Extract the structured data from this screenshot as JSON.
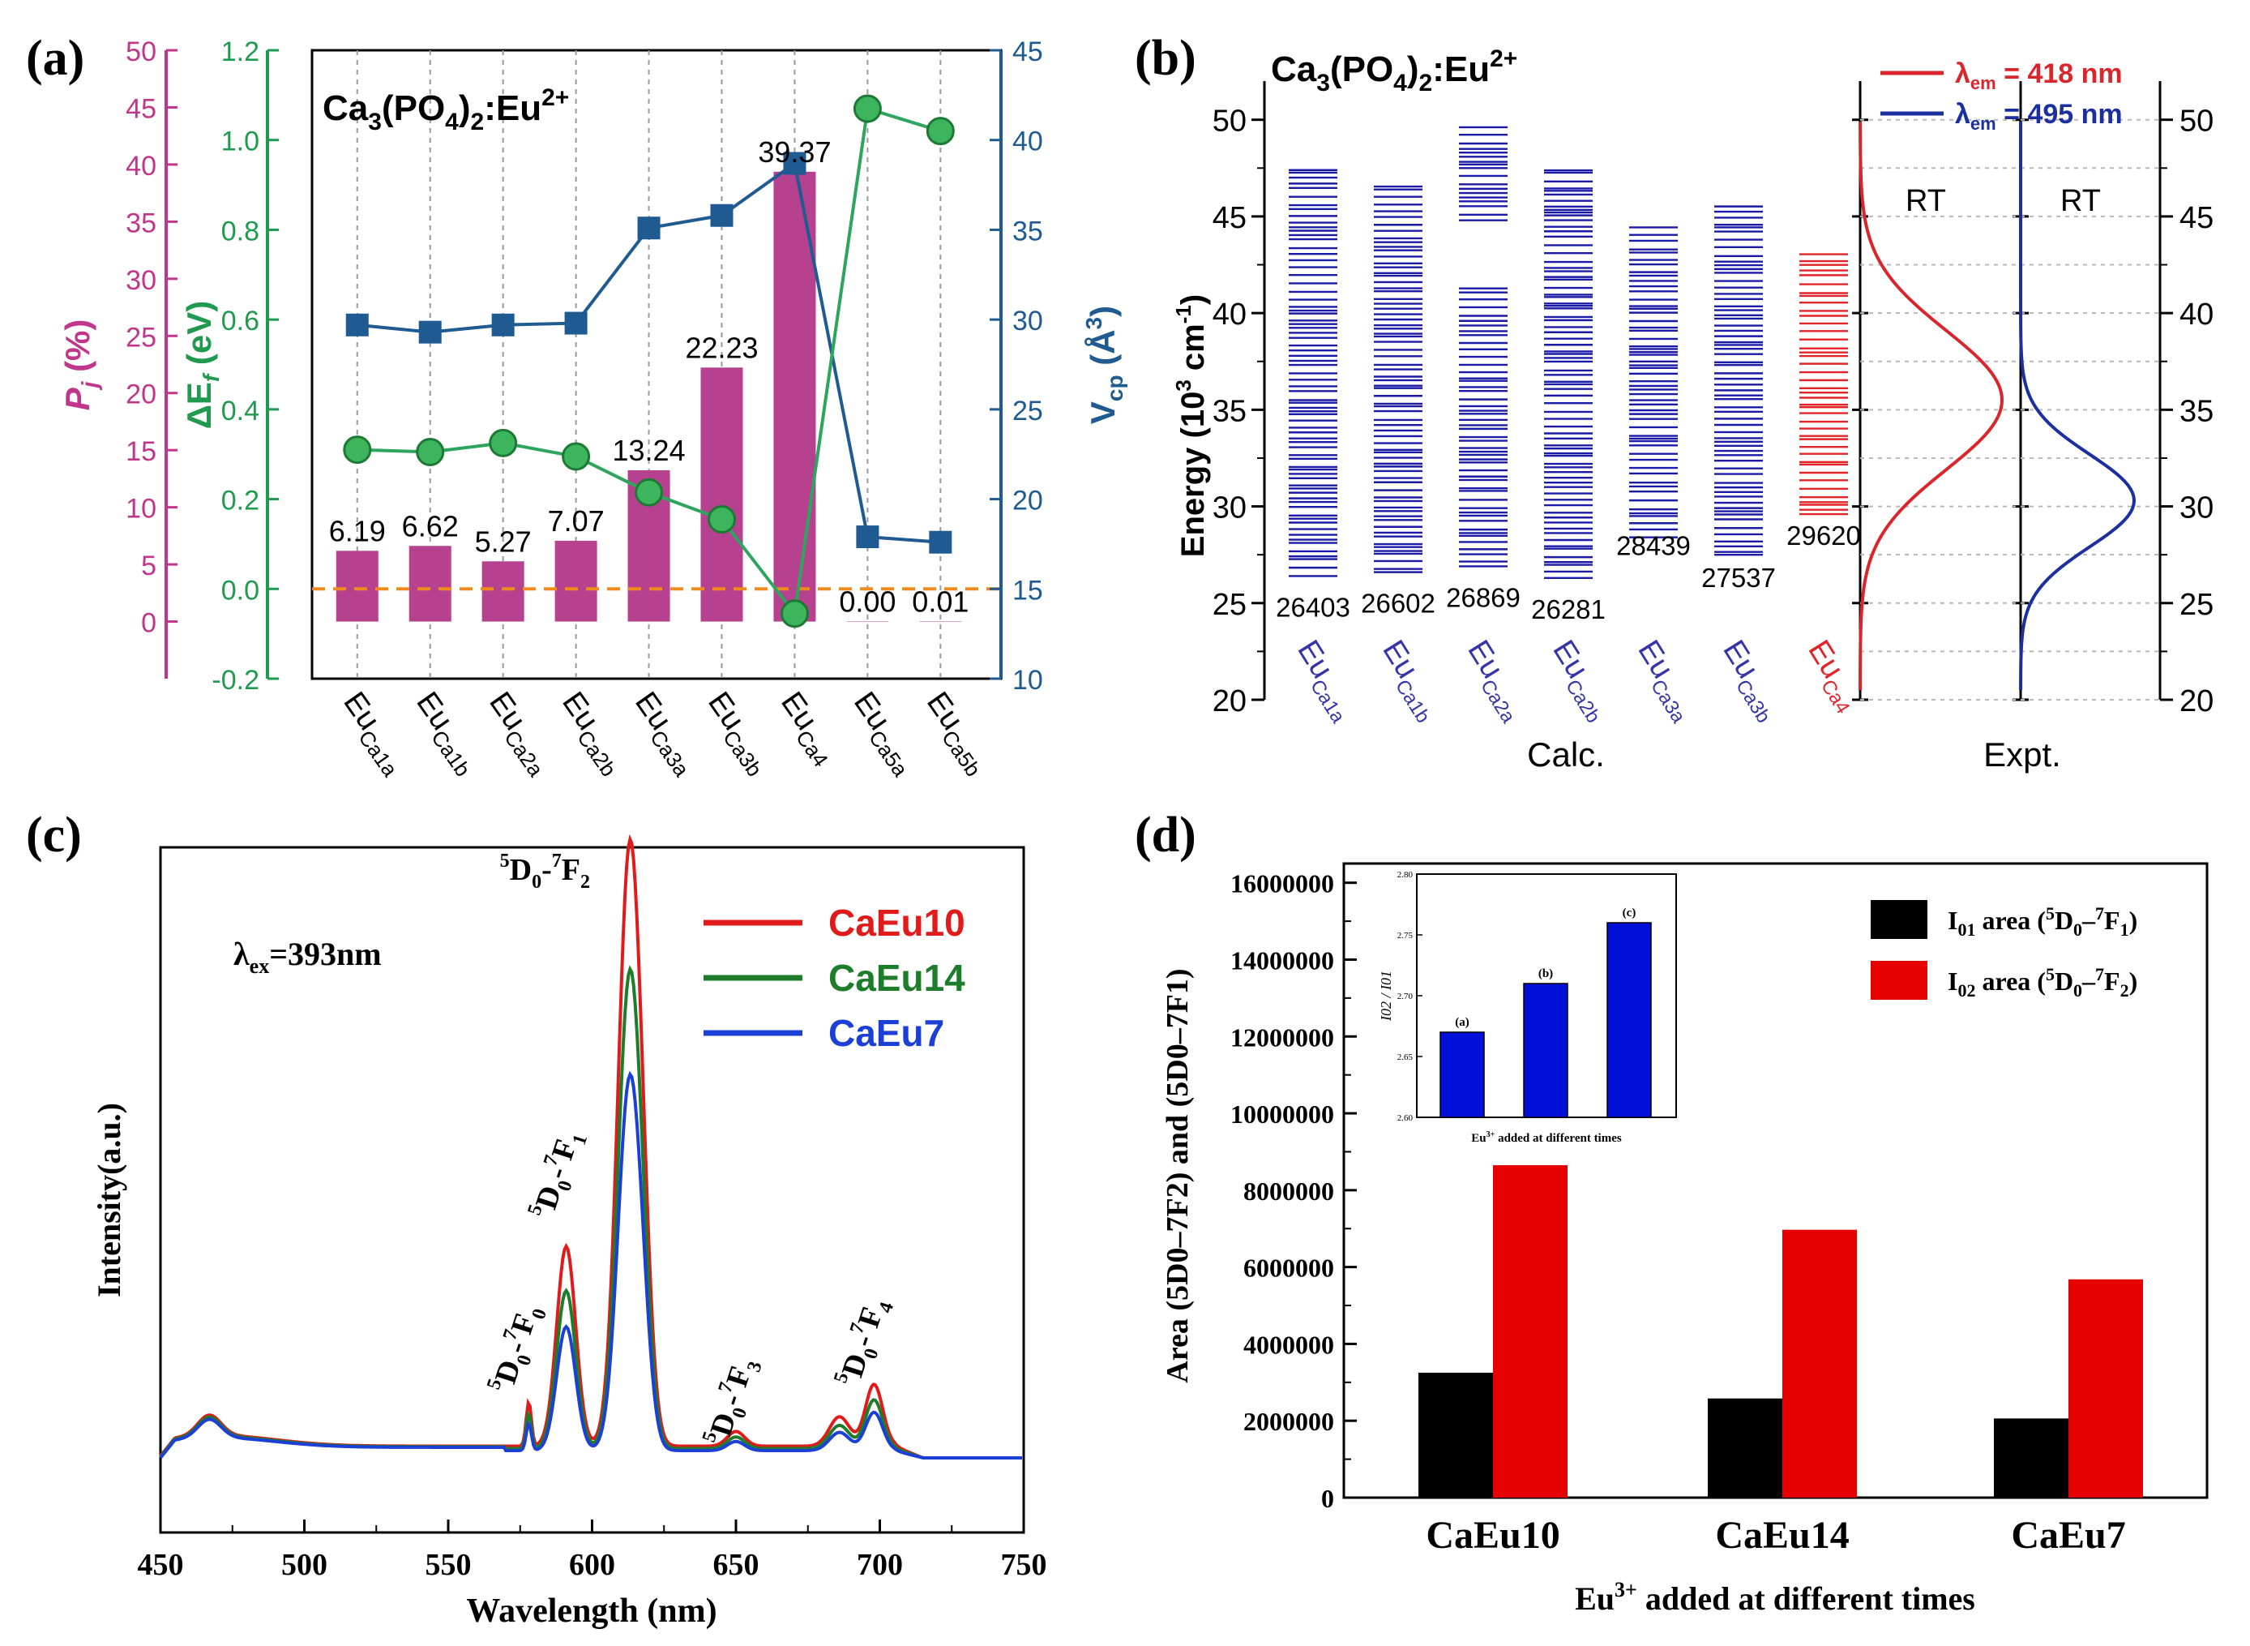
{
  "chart_data": [
    {
      "panel": "(a)",
      "type": "bar",
      "title_base": "Ca",
      "title_sub1": "3",
      "title_mid": "(PO",
      "title_sub2": "4",
      "title_mid2": ")",
      "title_sub3": "2",
      "title_end": ":Eu",
      "title_sup": "2+",
      "categories": [
        "Ca1a",
        "Ca1b",
        "Ca2a",
        "Ca2b",
        "Ca3a",
        "Ca3b",
        "Ca4",
        "Ca5a",
        "Ca5b"
      ],
      "category_prefix": "Eu",
      "pj_label": "P",
      "pj_sub": "j",
      "pj_unit": " (%)",
      "pj_values": [
        6.19,
        6.62,
        5.27,
        7.07,
        13.24,
        22.23,
        39.37,
        0.0,
        0.01
      ],
      "pj_labels": [
        "6.19",
        "6.62",
        "5.27",
        "7.07",
        "13.24",
        "22.23",
        "39.37",
        "0.00",
        "0.01"
      ],
      "pj_ticks": [
        0,
        5,
        10,
        15,
        20,
        25,
        30,
        35,
        40,
        45,
        50
      ],
      "pj_ylim": [
        -5,
        50
      ],
      "de_label": "ΔE",
      "de_sub": "f",
      "de_unit": " (eV)",
      "de_values": [
        0.31,
        0.305,
        0.325,
        0.295,
        0.215,
        0.155,
        -0.055,
        1.07,
        1.02
      ],
      "de_ticks": [
        "-0.2",
        "0.0",
        "0.2",
        "0.4",
        "0.6",
        "0.8",
        "1.0",
        "1.2"
      ],
      "de_ylim": [
        -0.2,
        1.2
      ],
      "vcp_label": "V",
      "vcp_sub": "cp",
      "vcp_unit": " (Å",
      "vcp_unit_sup": "3",
      "vcp_unit_end": ")",
      "vcp_values": [
        29.7,
        29.3,
        29.7,
        29.8,
        35.1,
        35.8,
        38.7,
        17.9,
        17.6
      ],
      "vcp_ticks": [
        10,
        15,
        20,
        25,
        30,
        35,
        40,
        45
      ],
      "vcp_ylim": [
        10,
        45
      ],
      "colors": {
        "bar": "#b5418f",
        "de": "#2ea55e",
        "vcp": "#1f5a91",
        "zero_line": "#f08a1c",
        "pj_axis": "#c0368a",
        "de_axis": "#1f9a4e",
        "vcp_axis": "#1f5a91"
      }
    },
    {
      "panel": "(b)",
      "type": "other",
      "title_base": "Ca",
      "title_sub1": "3",
      "title_mid": "(PO",
      "title_sub2": "4",
      "title_mid2": ")",
      "title_sub3": "2",
      "title_end": ":Eu",
      "title_sup": "2+",
      "ylabel": "Energy (10",
      "ylabel_sup": "3",
      "ylabel_end": " cm",
      "ylabel_sup2": "-1",
      "ylabel_close": ")",
      "yticks": [
        20,
        25,
        30,
        35,
        40,
        45,
        50
      ],
      "ylim": [
        20,
        52
      ],
      "columns": [
        {
          "site": "Ca1a",
          "onset": "26403",
          "low": 26.4,
          "high": 47.8
        },
        {
          "site": "Ca1b",
          "onset": "26602",
          "low": 26.6,
          "high": 46.8
        },
        {
          "site": "Ca2a",
          "onset": "26869",
          "low": 26.9,
          "high": 49.8
        },
        {
          "site": "Ca2b",
          "onset": "26281",
          "low": 26.3,
          "high": 47.5
        },
        {
          "site": "Ca3a",
          "onset": "28439",
          "low": 28.4,
          "high": 44.5
        },
        {
          "site": "Ca3b",
          "onset": "27537",
          "low": 27.5,
          "high": 45.7
        },
        {
          "site": "Ca4",
          "onset": "29620",
          "low": 29.6,
          "high": 43.1
        }
      ],
      "calc_label": "Calc.",
      "expt_label": "Expt.",
      "rt_label": "RT",
      "legend": [
        {
          "prefix": "λ",
          "sub": "em",
          "value": " = 418 nm",
          "color": "#d9262c"
        },
        {
          "prefix": "λ",
          "sub": "em",
          "value": " = 495 nm",
          "color": "#1c2f9e"
        }
      ],
      "emission_peaks_1e3cm": [
        35.5,
        30.3
      ],
      "colors": {
        "calc": "#1a1aa6",
        "ca4": "#e0242a",
        "curve1": "#d9262c",
        "curve2": "#1c2f9e",
        "site_label": "#3535a8"
      }
    },
    {
      "panel": "(c)",
      "type": "line",
      "xlabel": "Wavelength (nm)",
      "ylabel": "Intensity(a.u.)",
      "xticks": [
        450,
        500,
        550,
        600,
        650,
        700,
        750
      ],
      "xlim": [
        450,
        750
      ],
      "excitation": "λ",
      "excitation_sub": "ex",
      "excitation_value": "=393nm",
      "series": [
        {
          "name": "CaEu10",
          "color": "#e01b1b",
          "peak_scale": 1.0
        },
        {
          "name": "CaEu14",
          "color": "#1e7d2a",
          "peak_scale": 0.79
        },
        {
          "name": "CaEu7",
          "color": "#1c3fd6",
          "peak_scale": 0.62
        }
      ],
      "peaks": [
        {
          "wavelength": 578,
          "transition": "0"
        },
        {
          "wavelength": 591,
          "transition": "1"
        },
        {
          "wavelength": 613,
          "transition": "2"
        },
        {
          "wavelength": 650,
          "transition": "3"
        },
        {
          "wavelength": 698,
          "transition": "4"
        }
      ],
      "transition_prefix_sup": "5",
      "transition_prefix": "D",
      "transition_prefix_sub": "0",
      "transition_dash": "-",
      "transition_sup": "7",
      "transition_letter": "F"
    },
    {
      "panel": "(d)",
      "type": "bar",
      "categories": [
        "CaEu10",
        "CaEu14",
        "CaEu7"
      ],
      "series": [
        {
          "name": "I01 area",
          "values": [
            3250000,
            2580000,
            2060000
          ],
          "color": "#000000"
        },
        {
          "name": "I02 area",
          "values": [
            8650000,
            6970000,
            5680000
          ],
          "color": "#e60000"
        }
      ],
      "legend_I01_main": "I",
      "legend_I01_sub": "01",
      "legend_I01_text": " area (",
      "legend_I01_sup1": "5",
      "legend_I01_D": "D",
      "legend_I01_sub2": "0",
      "legend_I01_dash": "–",
      "legend_I01_sup2": "7",
      "legend_I01_F": "F",
      "legend_I01_sub3": "1",
      "legend_I01_close": ")",
      "legend_I02_main": "I",
      "legend_I02_sub": "02",
      "legend_I02_text": " area (",
      "legend_I02_sup1": "5",
      "legend_I02_D": "D",
      "legend_I02_sub2": "0",
      "legend_I02_dash": "–",
      "legend_I02_sup2": "7",
      "legend_I02_F": "F",
      "legend_I02_sub3": "2",
      "legend_I02_close": ")",
      "yticks": [
        "0",
        "2000000",
        "4000000",
        "6000000",
        "8000000",
        "10000000",
        "12000000",
        "14000000",
        "16000000"
      ],
      "ylim": [
        0,
        16500000
      ],
      "xlabel": "Eu",
      "xlabel_sup": "3+",
      "xlabel_end": " added at different times",
      "ylabel": "Area (5D0–7F2) and (5D0–7F1)",
      "inset": {
        "categories": [
          "(a)",
          "(b)",
          "(c)"
        ],
        "values": [
          2.67,
          2.71,
          2.76
        ],
        "ylim": [
          2.6,
          2.8
        ],
        "yticks": [
          "2.60",
          "2.65",
          "2.70",
          "2.75",
          "2.80"
        ],
        "ylabel": "I02 / I01",
        "xlabel": "Eu",
        "xlabel_sup": "3+",
        "xlabel_end": " added at different times",
        "color": "#0010d8"
      }
    }
  ]
}
